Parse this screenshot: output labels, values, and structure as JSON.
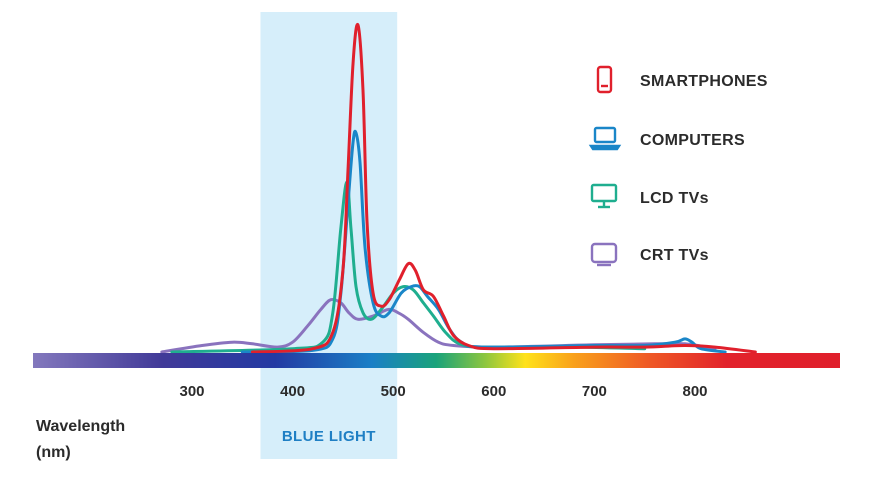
{
  "chart_data": {
    "type": "line",
    "xlabel": [
      "Wavelength",
      "(nm)"
    ],
    "xlim": [
      260,
      860
    ],
    "ylim": [
      0,
      100
    ],
    "x_ticks": [
      300,
      400,
      500,
      600,
      700,
      800
    ],
    "highlight_band": {
      "label": "BLUE LIGHT",
      "from": 380,
      "to": 500,
      "color": "#d6eefa"
    },
    "grid": false,
    "legend_placement": "top-right",
    "series": [
      {
        "name": "SMARTPHONES",
        "icon": "smartphone-icon",
        "color": "#e0202c",
        "points": [
          [
            360,
            0
          ],
          [
            420,
            1
          ],
          [
            440,
            6
          ],
          [
            450,
            25
          ],
          [
            455,
            55
          ],
          [
            460,
            88
          ],
          [
            465,
            100
          ],
          [
            470,
            80
          ],
          [
            474,
            40
          ],
          [
            480,
            18
          ],
          [
            488,
            14
          ],
          [
            496,
            16
          ],
          [
            506,
            22
          ],
          [
            515,
            27
          ],
          [
            522,
            25
          ],
          [
            530,
            19
          ],
          [
            540,
            17
          ],
          [
            550,
            11
          ],
          [
            560,
            5
          ],
          [
            575,
            2
          ],
          [
            600,
            1
          ],
          [
            700,
            1.5
          ],
          [
            750,
            1.5
          ],
          [
            790,
            2
          ],
          [
            820,
            1.5
          ],
          [
            860,
            0
          ]
        ]
      },
      {
        "name": "COMPUTERS",
        "icon": "laptop-icon",
        "color": "#1a86c8",
        "points": [
          [
            350,
            0
          ],
          [
            420,
            0.5
          ],
          [
            440,
            4
          ],
          [
            448,
            18
          ],
          [
            455,
            45
          ],
          [
            460,
            64
          ],
          [
            463,
            67
          ],
          [
            467,
            58
          ],
          [
            472,
            32
          ],
          [
            480,
            15
          ],
          [
            488,
            11
          ],
          [
            496,
            12
          ],
          [
            508,
            18
          ],
          [
            518,
            20
          ],
          [
            526,
            20
          ],
          [
            534,
            17
          ],
          [
            545,
            13
          ],
          [
            556,
            7
          ],
          [
            568,
            3
          ],
          [
            590,
            1.5
          ],
          [
            700,
            2
          ],
          [
            750,
            2
          ],
          [
            780,
            3
          ],
          [
            790,
            4
          ],
          [
            797,
            3
          ],
          [
            806,
            1
          ],
          [
            830,
            0
          ]
        ]
      },
      {
        "name": "LCD TVs",
        "icon": "monitor-icon",
        "color": "#1fae8f",
        "points": [
          [
            280,
            0
          ],
          [
            400,
            1
          ],
          [
            430,
            3
          ],
          [
            440,
            12
          ],
          [
            448,
            38
          ],
          [
            454,
            52
          ],
          [
            458,
            38
          ],
          [
            463,
            20
          ],
          [
            470,
            12
          ],
          [
            478,
            10
          ],
          [
            488,
            13
          ],
          [
            500,
            18
          ],
          [
            510,
            20
          ],
          [
            520,
            19
          ],
          [
            530,
            15
          ],
          [
            540,
            11
          ],
          [
            552,
            6
          ],
          [
            566,
            2.5
          ],
          [
            590,
            1.5
          ],
          [
            680,
            1.5
          ],
          [
            750,
            1
          ]
        ]
      },
      {
        "name": "CRT TVs",
        "icon": "crt-tv-icon",
        "color": "#8a73be",
        "points": [
          [
            270,
            0
          ],
          [
            310,
            2
          ],
          [
            340,
            3
          ],
          [
            360,
            2.5
          ],
          [
            385,
            1.5
          ],
          [
            400,
            3
          ],
          [
            415,
            8
          ],
          [
            428,
            13
          ],
          [
            438,
            16
          ],
          [
            448,
            15
          ],
          [
            456,
            12
          ],
          [
            465,
            10
          ],
          [
            480,
            11
          ],
          [
            495,
            13
          ],
          [
            505,
            12
          ],
          [
            515,
            10
          ],
          [
            530,
            6
          ],
          [
            545,
            3
          ],
          [
            560,
            2
          ],
          [
            600,
            1.5
          ],
          [
            700,
            2.2
          ],
          [
            760,
            2.5
          ],
          [
            790,
            2.5
          ],
          [
            820,
            1
          ]
        ]
      }
    ]
  }
}
